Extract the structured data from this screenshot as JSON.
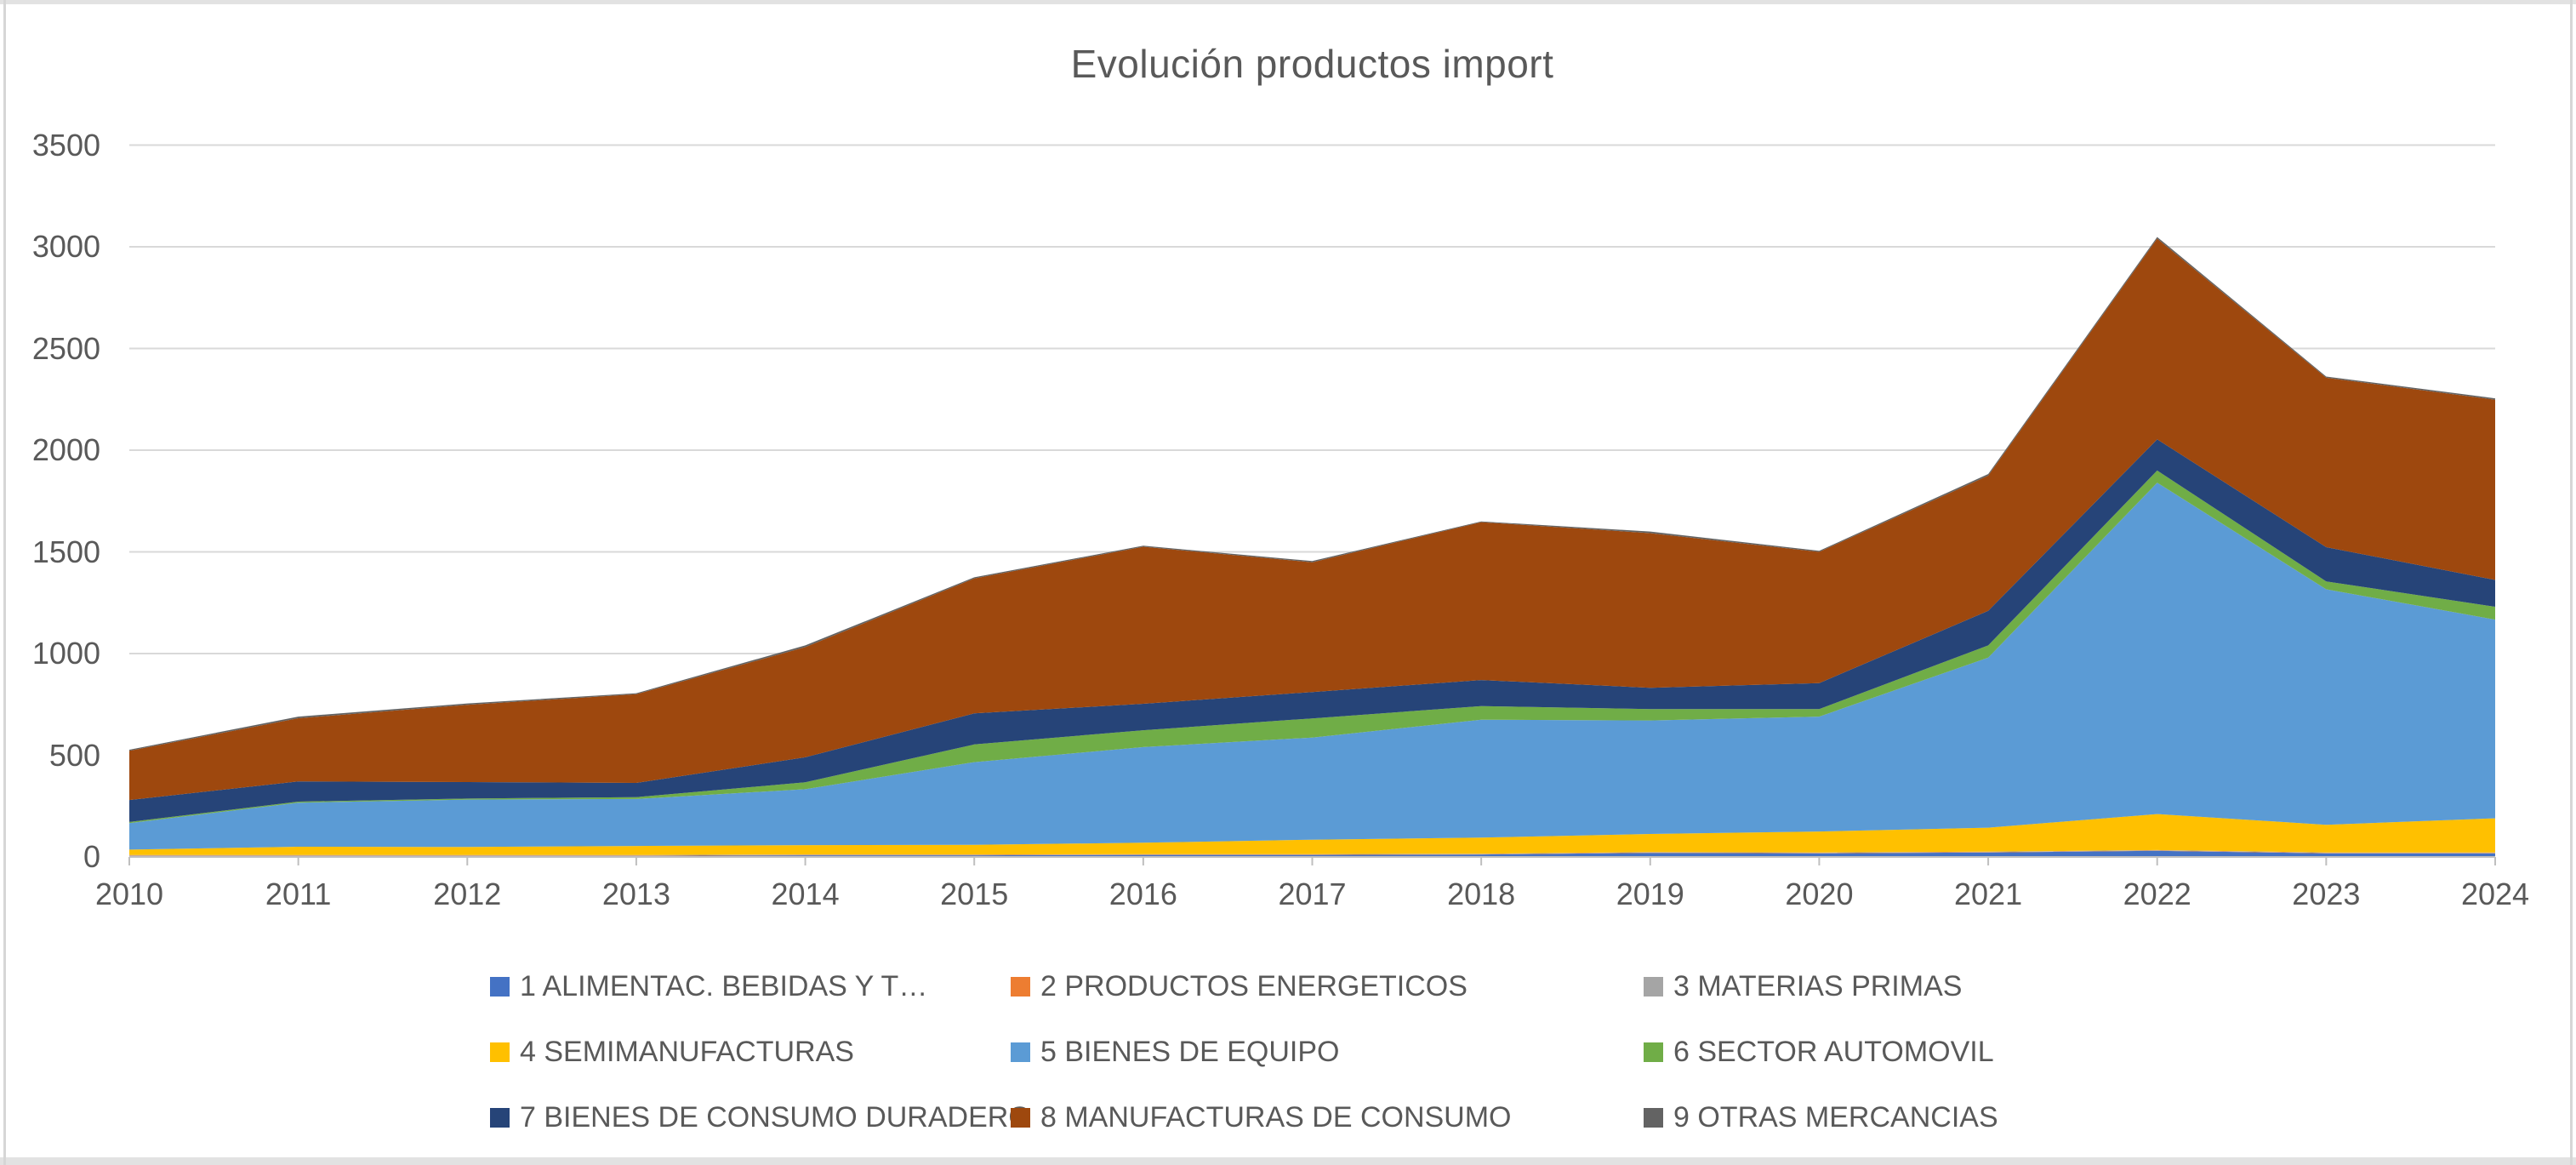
{
  "window": {
    "background": "#ffffff",
    "frame_color": "#d9d9d9"
  },
  "chart_data": {
    "type": "area",
    "stacked": true,
    "title": "Evolución productos import",
    "x": [
      "2010",
      "2011",
      "2012",
      "2013",
      "2014",
      "2015",
      "2016",
      "2017",
      "2018",
      "2019",
      "2020",
      "2021",
      "2022",
      "2023",
      "2024"
    ],
    "xlabel": "",
    "ylabel": "",
    "ylim": [
      0,
      3500
    ],
    "ytick_step": 500,
    "y_ticks": [
      "0",
      "500",
      "1000",
      "1500",
      "2000",
      "2500",
      "3000",
      "3500"
    ],
    "grid": true,
    "legend_position": "bottom",
    "series": [
      {
        "name": "1 ALIMENTAC. BEBIDAS Y T…",
        "color": "#4472C4",
        "values": [
          5,
          5,
          5,
          5,
          8,
          8,
          10,
          10,
          12,
          20,
          18,
          22,
          30,
          18,
          18
        ]
      },
      {
        "name": "2 PRODUCTOS ENERGETICOS",
        "color": "#ED7D31",
        "values": [
          2,
          2,
          2,
          2,
          2,
          2,
          2,
          2,
          2,
          2,
          2,
          2,
          2,
          2,
          2
        ]
      },
      {
        "name": "3 MATERIAS PRIMAS",
        "color": "#A5A5A5",
        "values": [
          2,
          2,
          2,
          2,
          2,
          2,
          2,
          2,
          2,
          2,
          2,
          2,
          2,
          2,
          2
        ]
      },
      {
        "name": "4 SEMIMANUFACTURAS",
        "color": "#FFC000",
        "values": [
          27,
          41,
          40,
          45,
          46,
          48,
          56,
          71,
          79,
          89,
          103,
          118,
          177,
          136,
          168
        ]
      },
      {
        "name": "5 BIENES DE EQUIPO",
        "color": "#5B9BD5",
        "values": [
          130,
          217,
          233,
          231,
          275,
          406,
          470,
          502,
          580,
          558,
          565,
          836,
          1629,
          1158,
          977
        ]
      },
      {
        "name": "6 SECTOR AUTOMOVIL",
        "color": "#70AD47",
        "values": [
          6,
          5,
          5,
          9,
          34,
          87,
          83,
          94,
          67,
          56,
          37,
          60,
          60,
          39,
          63
        ]
      },
      {
        "name": "7 BIENES DE CONSUMO DURADERO",
        "color": "#264478",
        "values": [
          108,
          99,
          81,
          70,
          123,
          153,
          130,
          130,
          128,
          105,
          128,
          170,
          153,
          168,
          132
        ]
      },
      {
        "name": "8 MANUFACTURAS DE CONSUMO",
        "color": "#9E480E",
        "values": [
          242,
          311,
          380,
          436,
          542,
          663,
          772,
          638,
          776,
          760,
          645,
          665,
          987,
          833,
          886
        ]
      },
      {
        "name": "9 OTRAS MERCANCIAS",
        "color": "#636363",
        "values": [
          5,
          8,
          7,
          5,
          8,
          6,
          5,
          6,
          4,
          8,
          5,
          8,
          8,
          6,
          7
        ]
      }
    ],
    "axis_color": "#bfbfbf",
    "gridline_color": "#d9d9d9",
    "text_color": "#595959"
  }
}
